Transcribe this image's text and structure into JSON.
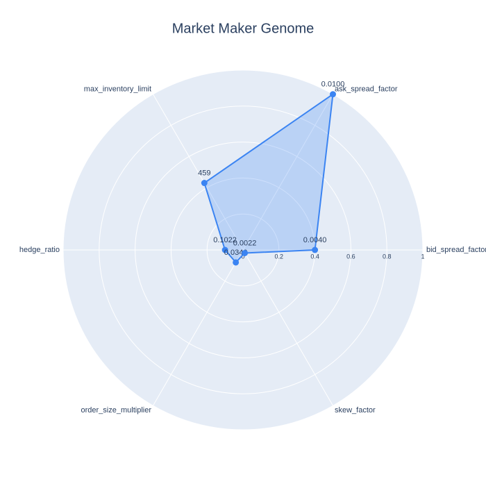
{
  "chart_data": {
    "type": "radar",
    "title": "Market Maker Genome",
    "categories": [
      "bid_spread_factor",
      "ask_spread_factor",
      "max_inventory_limit",
      "hedge_ratio",
      "order_size_multiplier",
      "skew_factor"
    ],
    "series": [
      {
        "color": "#3b84f2",
        "values": [
          0.4,
          1.0,
          0.43,
          0.1,
          0.08,
          0.02
        ],
        "text": [
          "0.0040",
          "0.0100",
          "459",
          "0.1022",
          "0.0340",
          "0.0022"
        ]
      }
    ],
    "rlim": [
      0,
      1
    ],
    "rticks": [
      0,
      0.2,
      0.4,
      0.6,
      0.8,
      1
    ],
    "grid": true
  }
}
